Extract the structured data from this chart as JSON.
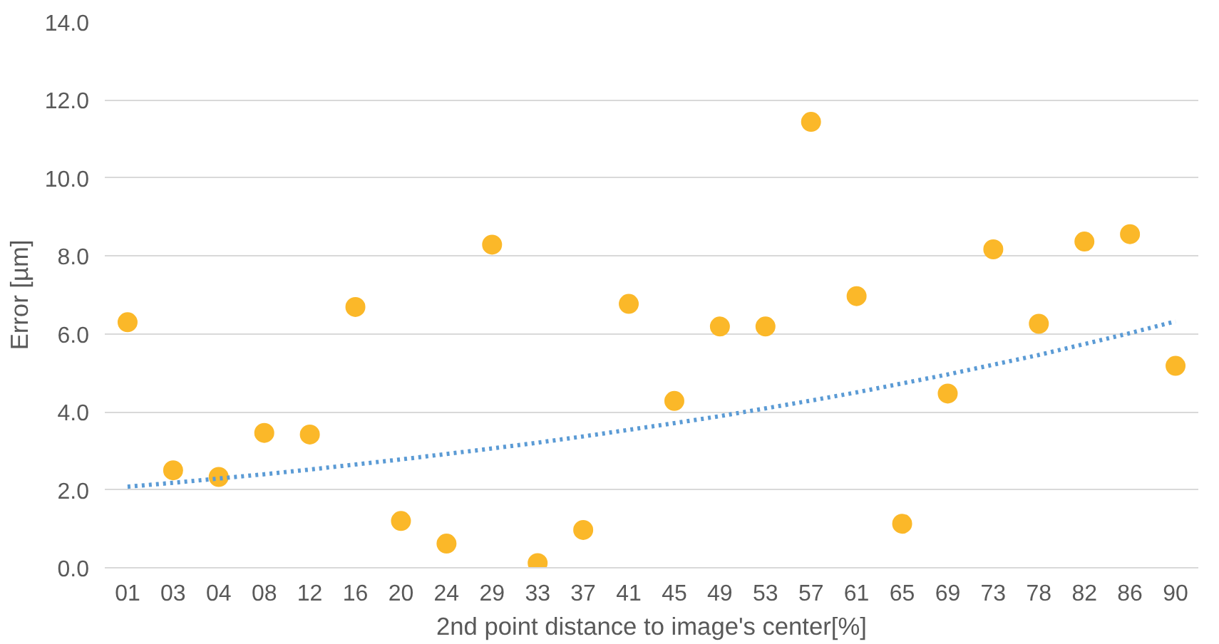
{
  "chart_data": {
    "type": "scatter",
    "xlabel": "2nd point distance to image's center[%]",
    "ylabel": "Error [µm]",
    "categories": [
      "01",
      "03",
      "04",
      "08",
      "12",
      "16",
      "20",
      "24",
      "29",
      "33",
      "37",
      "41",
      "45",
      "49",
      "53",
      "57",
      "61",
      "65",
      "69",
      "73",
      "78",
      "82",
      "86",
      "90"
    ],
    "series": [
      {
        "color": "#fbb829",
        "marker": "circle",
        "values": [
          6.3,
          2.5,
          2.33,
          3.46,
          3.42,
          6.69,
          1.2,
          0.62,
          8.29,
          0.12,
          0.97,
          6.77,
          4.28,
          6.19,
          6.19,
          11.44,
          6.97,
          1.13,
          4.47,
          8.17,
          6.26,
          8.37,
          8.56,
          5.18
        ]
      },
      {
        "type": "line",
        "color": "#5b9bd5",
        "line_style": "dotted",
        "marker": "none",
        "values": [
          2.08,
          2.18,
          2.29,
          2.4,
          2.52,
          2.65,
          2.78,
          2.92,
          3.06,
          3.21,
          3.37,
          3.54,
          3.71,
          3.89,
          4.09,
          4.29,
          4.5,
          4.73,
          4.96,
          5.21,
          5.46,
          5.74,
          6.02,
          6.32
        ]
      }
    ],
    "ylim": [
      0,
      14
    ],
    "yticks": [
      {
        "value": 0,
        "label": "0.0"
      },
      {
        "value": 2,
        "label": "2.0"
      },
      {
        "value": 4,
        "label": "4.0"
      },
      {
        "value": 6,
        "label": "6.0"
      },
      {
        "value": 8,
        "label": "8.0"
      },
      {
        "value": 10,
        "label": "10.0"
      },
      {
        "value": 12,
        "label": "12.0"
      },
      {
        "value": 14,
        "label": "14.0"
      }
    ],
    "grid": "y"
  }
}
